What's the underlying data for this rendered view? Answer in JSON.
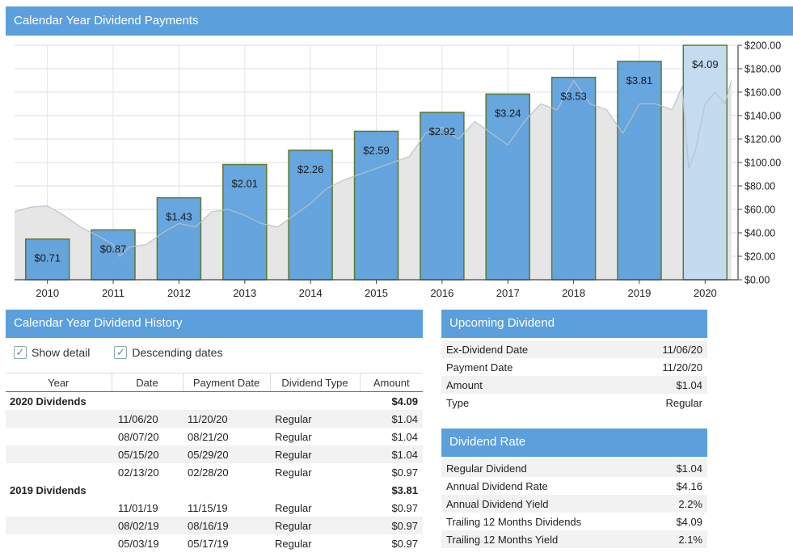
{
  "chart_title": "Calendar Year Dividend Payments",
  "chart_data": {
    "type": "bar",
    "categories": [
      "2010",
      "2011",
      "2012",
      "2013",
      "2014",
      "2015",
      "2016",
      "2017",
      "2018",
      "2019",
      "2020"
    ],
    "values": [
      0.71,
      0.87,
      1.43,
      2.01,
      2.26,
      2.59,
      2.92,
      3.24,
      3.53,
      3.81,
      4.09
    ],
    "bar_labels": [
      "$0.71",
      "$0.87",
      "$1.43",
      "$2.01",
      "$2.26",
      "$2.59",
      "$2.92",
      "$3.24",
      "$3.53",
      "$3.81",
      "$4.09"
    ],
    "bar_scale_max": 4.09,
    "bar_scale_max_price": 200,
    "right_axis": {
      "ticks": [
        0,
        20,
        40,
        60,
        80,
        100,
        120,
        140,
        160,
        180,
        200
      ],
      "tick_labels": [
        "$0.00",
        "$20.00",
        "$40.00",
        "$60.00",
        "$80.00",
        "$100.00",
        "$120.00",
        "$140.00",
        "$160.00",
        "$180.00",
        "$200.00"
      ],
      "ylim": [
        0,
        200
      ]
    },
    "price_series": {
      "years": [
        2010.0,
        2010.25,
        2010.5,
        2010.75,
        2011.0,
        2011.25,
        2011.5,
        2011.6,
        2011.75,
        2012.0,
        2012.25,
        2012.5,
        2012.75,
        2013.0,
        2013.25,
        2013.5,
        2013.75,
        2014.0,
        2014.25,
        2014.5,
        2014.75,
        2015.0,
        2015.25,
        2015.5,
        2015.75,
        2016.0,
        2016.25,
        2016.5,
        2016.75,
        2017.0,
        2017.25,
        2017.5,
        2017.75,
        2018.0,
        2018.25,
        2018.5,
        2018.75,
        2019.0,
        2019.25,
        2019.5,
        2019.75,
        2020.0,
        2020.15,
        2020.25,
        2020.35,
        2020.5,
        2020.65,
        2020.8,
        2020.9
      ],
      "values": [
        58,
        62,
        63,
        55,
        45,
        38,
        30,
        20,
        28,
        30,
        40,
        48,
        45,
        58,
        60,
        55,
        48,
        45,
        55,
        65,
        78,
        85,
        90,
        95,
        100,
        105,
        125,
        130,
        120,
        135,
        125,
        115,
        135,
        150,
        145,
        170,
        150,
        145,
        125,
        150,
        150,
        145,
        165,
        95,
        110,
        150,
        160,
        150,
        170
      ]
    },
    "colors": {
      "bar_fill": "#5a9edb",
      "bar_fill_current": "#c1d9ef",
      "bar_stroke": "#5c7a2d",
      "price_fill": "#e6e6e6",
      "price_line": "#b9c2cc"
    }
  },
  "history": {
    "title": "Calendar Year Dividend History",
    "checkboxes": [
      {
        "label": "Show detail",
        "checked": true
      },
      {
        "label": "Descending dates",
        "checked": true
      }
    ],
    "headers": {
      "year": "Year",
      "date": "Date",
      "payment_date": "Payment Date",
      "dividend_type": "Dividend Type",
      "amount": "Amount"
    },
    "rows": [
      {
        "year": "2020 Dividends",
        "date": "",
        "payment": "",
        "type": "",
        "amount": "$4.09",
        "group": true
      },
      {
        "year": "",
        "date": "11/06/20",
        "payment": "11/20/20",
        "type": "Regular",
        "amount": "$1.04"
      },
      {
        "year": "",
        "date": "08/07/20",
        "payment": "08/21/20",
        "type": "Regular",
        "amount": "$1.04"
      },
      {
        "year": "",
        "date": "05/15/20",
        "payment": "05/29/20",
        "type": "Regular",
        "amount": "$1.04"
      },
      {
        "year": "",
        "date": "02/13/20",
        "payment": "02/28/20",
        "type": "Regular",
        "amount": "$0.97"
      },
      {
        "year": "2019 Dividends",
        "date": "",
        "payment": "",
        "type": "",
        "amount": "$3.81",
        "group": true
      },
      {
        "year": "",
        "date": "11/01/19",
        "payment": "11/15/19",
        "type": "Regular",
        "amount": "$0.97"
      },
      {
        "year": "",
        "date": "08/02/19",
        "payment": "08/16/19",
        "type": "Regular",
        "amount": "$0.97"
      },
      {
        "year": "",
        "date": "05/03/19",
        "payment": "05/17/19",
        "type": "Regular",
        "amount": "$0.97"
      }
    ]
  },
  "upcoming": {
    "title": "Upcoming Dividend",
    "rows": [
      {
        "label": "Ex-Dividend Date",
        "value": "11/06/20"
      },
      {
        "label": "Payment Date",
        "value": "11/20/20"
      },
      {
        "label": "Amount",
        "value": "$1.04"
      },
      {
        "label": "Type",
        "value": "Regular"
      }
    ]
  },
  "rate": {
    "title": "Dividend Rate",
    "rows": [
      {
        "label": "Regular Dividend",
        "value": "$1.04"
      },
      {
        "label": "Annual Dividend Rate",
        "value": "$4.16"
      },
      {
        "label": "Annual Dividend Yield",
        "value": "2.2%"
      },
      {
        "label": "Trailing 12 Months Dividends",
        "value": "$4.09"
      },
      {
        "label": "Trailing 12 Months Yield",
        "value": "2.1%"
      }
    ]
  }
}
